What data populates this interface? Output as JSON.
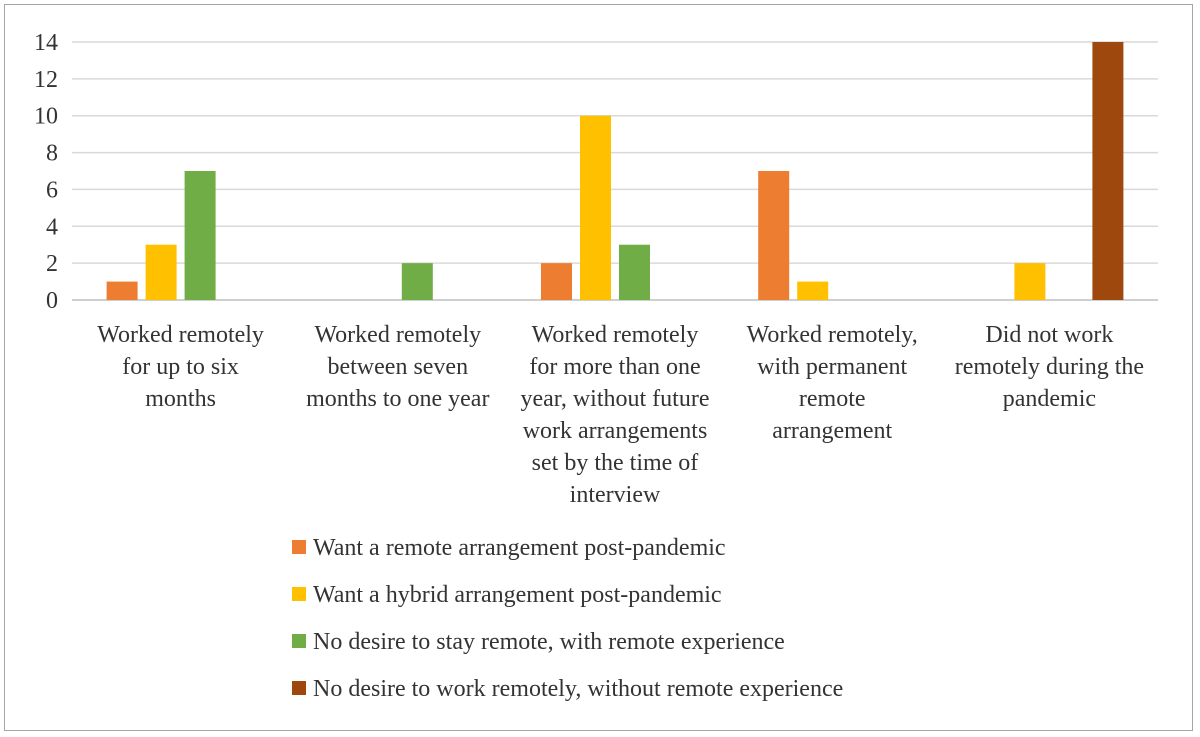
{
  "chart_data": {
    "type": "bar",
    "title": "",
    "xlabel": "",
    "ylabel": "",
    "ylim": [
      0,
      14
    ],
    "yticks": [
      0,
      2,
      4,
      6,
      8,
      10,
      12,
      14
    ],
    "grid": true,
    "legend_position": "bottom",
    "categories": [
      [
        "Worked remotely",
        "for up to six",
        "months"
      ],
      [
        "Worked remotely",
        "between seven",
        "months to one year"
      ],
      [
        "Worked remotely",
        "for more than one",
        "year, without future",
        "work arrangements",
        "set by the time of",
        "interview"
      ],
      [
        "Worked remotely,",
        "with permanent",
        "remote",
        "arrangement"
      ],
      [
        "Did not work",
        "remotely during the",
        "pandemic"
      ]
    ],
    "series": [
      {
        "name": "Want a remote arrangement post-pandemic",
        "color": "#ed7d31",
        "values": [
          1,
          0,
          2,
          7,
          0
        ]
      },
      {
        "name": "Want a hybrid arrangement post-pandemic",
        "color": "#ffc000",
        "values": [
          3,
          0,
          10,
          1,
          2
        ]
      },
      {
        "name": "No desire to stay remote, with remote experience",
        "color": "#70ad47",
        "values": [
          7,
          2,
          3,
          0,
          0
        ]
      },
      {
        "name": "No desire to work remotely, without remote experience",
        "color": "#9e480e",
        "values": [
          0,
          0,
          0,
          0,
          14
        ]
      }
    ]
  }
}
